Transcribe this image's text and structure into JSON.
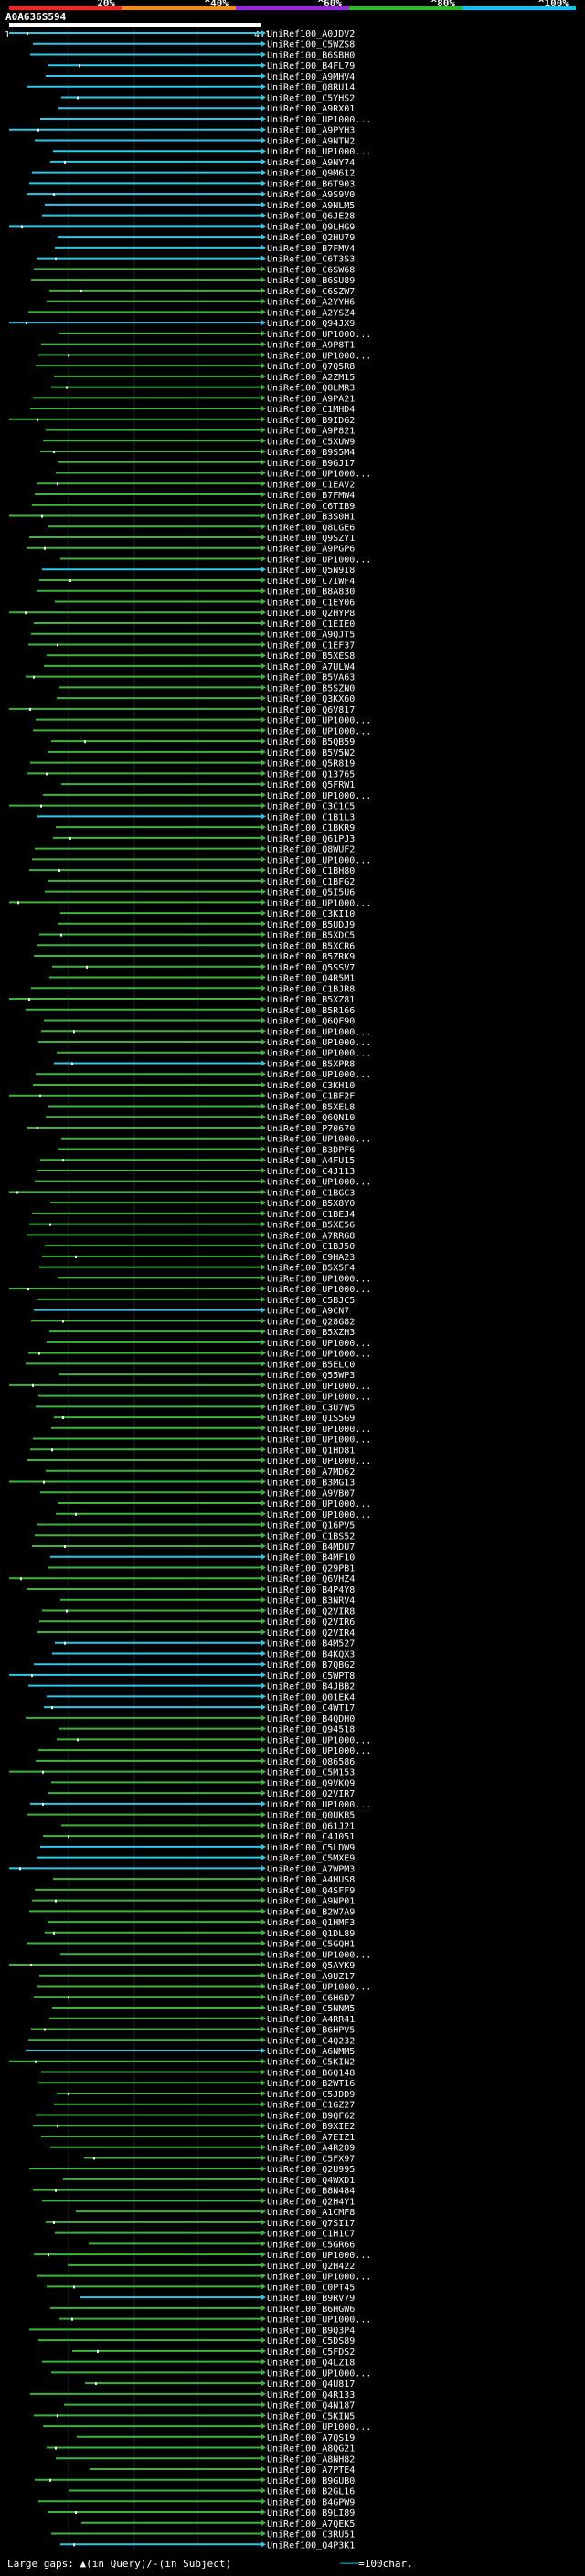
{
  "header": {
    "query_id": "A0A636S594",
    "ruler_start": "1",
    "ruler_end": "411",
    "pct_labels": [
      "20%",
      "^40%",
      "^60%",
      "^80%",
      "^100%"
    ],
    "pct_colors": [
      "#ff2020",
      "#ff8c00",
      "#a020f0",
      "#20c020",
      "#00c8ff"
    ]
  },
  "chart_data": {
    "type": "table",
    "title": "A0A636S594",
    "query_length": 411,
    "labels": [
      "UniRef100_A0JDV2",
      "UniRef100_C5WZS8",
      "UniRef100_B6SBH0",
      "UniRef100_B4FL79",
      "UniRef100_A9MHV4",
      "UniRef100_Q8RU14",
      "UniRef100_C5YHS2",
      "UniRef100_A9RX01",
      "UniRef100_UP1000...",
      "UniRef100_A9PYH3",
      "UniRef100_A9NTN2",
      "UniRef100_UP1000...",
      "UniRef100_A9NY74",
      "UniRef100_Q9M612",
      "UniRef100_B6T903",
      "UniRef100_A9S9V0",
      "UniRef100_A9NLM5",
      "UniRef100_Q6JE28",
      "UniRef100_Q9LHG9",
      "UniRef100_Q2HU79",
      "UniRef100_B7FMV4",
      "UniRef100_C6T3S3",
      "UniRef100_C6SW68",
      "UniRef100_B6SU89",
      "UniRef100_C6SZW7",
      "UniRef100_A2YYH6",
      "UniRef100_A2YSZ4",
      "UniRef100_Q94JX9",
      "UniRef100_UP1000...",
      "UniRef100_A9P8T1",
      "UniRef100_UP1000...",
      "UniRef100_Q7Q5R8",
      "UniRef100_A2ZM15",
      "UniRef100_Q8LMR3",
      "UniRef100_A9PA21",
      "UniRef100_C1MHD4",
      "UniRef100_B9IDG2",
      "UniRef100_A9P821",
      "UniRef100_C5XUW9",
      "UniRef100_B9S5M4",
      "UniRef100_B9GJ17",
      "UniRef100_UP1000...",
      "UniRef100_C1EAV2",
      "UniRef100_B7FMW4",
      "UniRef100_C6TIB9",
      "UniRef100_B3S0H1",
      "UniRef100_Q8LGE6",
      "UniRef100_Q9SZY1",
      "UniRef100_A9PGP6",
      "UniRef100_UP1000...",
      "UniRef100_Q5N9I8",
      "UniRef100_C7IWF4",
      "UniRef100_B8A830",
      "UniRef100_C1EY06",
      "UniRef100_Q2HYP8",
      "UniRef100_C1EIE0",
      "UniRef100_A9QJT5",
      "UniRef100_C1EF37",
      "UniRef100_B5XES8",
      "UniRef100_A7ULW4",
      "UniRef100_B5VA63",
      "UniRef100_B5SZN0",
      "UniRef100_Q3KX60",
      "UniRef100_Q6V817",
      "UniRef100_UP1000...",
      "UniRef100_UP1000...",
      "UniRef100_B5QB59",
      "UniRef100_B5V5N2",
      "UniRef100_Q5R819",
      "UniRef100_Q13765",
      "UniRef100_Q5FRW1",
      "UniRef100_UP1000...",
      "UniRef100_C3C1C5",
      "UniRef100_C1B1L3",
      "UniRef100_C1BKR9",
      "UniRef100_Q61PJ3",
      "UniRef100_Q8WUF2",
      "UniRef100_UP1000...",
      "UniRef100_C1BH80",
      "UniRef100_C1BFG2",
      "UniRef100_Q5I5U6",
      "UniRef100_UP1000...",
      "UniRef100_C3KI10",
      "UniRef100_B5UDJ9",
      "UniRef100_B5XDC5",
      "UniRef100_B5XCR6",
      "UniRef100_B5ZRK9",
      "UniRef100_Q5SSV7",
      "UniRef100_Q4R5M1",
      "UniRef100_C1BJR8",
      "UniRef100_B5XZ81",
      "UniRef100_B5R166",
      "UniRef100_Q6QF90",
      "UniRef100_UP1000...",
      "UniRef100_UP1000...",
      "UniRef100_UP1000...",
      "UniRef100_B5XPR8",
      "UniRef100_UP1000...",
      "UniRef100_C3KH10",
      "UniRef100_C1BF2F",
      "UniRef100_B5XEL8",
      "UniRef100_Q6QN10",
      "UniRef100_P70670",
      "UniRef100_UP1000...",
      "UniRef100_B3DPF6",
      "UniRef100_A4FU15",
      "UniRef100_C4J113",
      "UniRef100_UP1000...",
      "UniRef100_C1BGC3",
      "UniRef100_B5X8Y0",
      "UniRef100_C1BEJ4",
      "UniRef100_B5XE56",
      "UniRef100_A7RRG8",
      "UniRef100_C1BJ50",
      "UniRef100_C9HA23",
      "UniRef100_B5X5F4",
      "UniRef100_UP1000...",
      "UniRef100_UP1000...",
      "UniRef100_C5BJC5",
      "UniRef100_A9CN7",
      "UniRef100_Q28G82",
      "UniRef100_B5XZH3",
      "UniRef100_UP1000...",
      "UniRef100_UP1000...",
      "UniRef100_B5ELC0",
      "UniRef100_Q55WP3",
      "UniRef100_UP1000...",
      "UniRef100_UP1000...",
      "UniRef100_C3U7W5",
      "UniRef100_Q1S5G9",
      "UniRef100_UP1000...",
      "UniRef100_UP1000...",
      "UniRef100_Q1HD81",
      "UniRef100_UP1000...",
      "UniRef100_A7MD62",
      "UniRef100_B3MG13",
      "UniRef100_A9VB07",
      "UniRef100_UP1000...",
      "UniRef100_UP1000...",
      "UniRef100_Q16PV5",
      "UniRef100_C1BS52",
      "UniRef100_B4MDU7",
      "UniRef100_B4MF10",
      "UniRef100_Q29PB1",
      "UniRef100_Q6VHZ4",
      "UniRef100_B4P4Y8",
      "UniRef100_B3NRV4",
      "UniRef100_Q2VIR8",
      "UniRef100_Q2VIR6",
      "UniRef100_Q2VIR4",
      "UniRef100_B4M527",
      "UniRef100_B4KQX3",
      "UniRef100_B7QBG2",
      "UniRef100_C5WPT8",
      "UniRef100_B4JBB2",
      "UniRef100_Q01EK4",
      "UniRef100_C4WT17",
      "UniRef100_B4QDH0",
      "UniRef100_Q94518",
      "UniRef100_UP1000...",
      "UniRef100_UP1000...",
      "UniRef100_Q86586",
      "UniRef100_C5M153",
      "UniRef100_Q9VKQ9",
      "UniRef100_Q2VIR7",
      "UniRef100_UP1000...",
      "UniRef100_Q0UKB5",
      "UniRef100_Q61J21",
      "UniRef100_C4J051",
      "UniRef100_C5LDW9",
      "UniRef100_C5MXE9",
      "UniRef100_A7WPM3",
      "UniRef100_A4HUS8",
      "UniRef100_Q4SFF9",
      "UniRef100_A9NP01",
      "UniRef100_B2W7A9",
      "UniRef100_Q1HMF3",
      "UniRef100_Q1DL89",
      "UniRef100_C5GQH1",
      "UniRef100_UP1000...",
      "UniRef100_Q5AYK9",
      "UniRef100_A9UZ17",
      "UniRef100_UP1000...",
      "UniRef100_C6H6D7",
      "UniRef100_C5NNM5",
      "UniRef100_A4RR41",
      "UniRef100_B6HPV5",
      "UniRef100_C4Q232",
      "UniRef100_A6NMM5",
      "UniRef100_C5KIN2",
      "UniRef100_B6Q148",
      "UniRef100_B2WT16",
      "UniRef100_C5JDD9",
      "UniRef100_C1GZ27",
      "UniRef100_B9QF62",
      "UniRef100_B9XIE2",
      "UniRef100_A7EIZ1",
      "UniRef100_A4R289",
      "UniRef100_C5FX97",
      "UniRef100_Q2U995",
      "UniRef100_Q4WXD1",
      "UniRef100_B8N484",
      "UniRef100_Q2H4Y1",
      "UniRef100_A1CMF8",
      "UniRef100_Q7SI17",
      "UniRef100_C1H1C7",
      "UniRef100_C5GR66",
      "UniRef100_UP1000...",
      "UniRef100_Q2H422",
      "UniRef100_UP1000...",
      "UniRef100_C0PT45",
      "UniRef100_B9RV79",
      "UniRef100_B6HGW6",
      "UniRef100_UP1000...",
      "UniRef100_B9Q3P4",
      "UniRef100_C5DS89",
      "UniRef100_C5FDS2",
      "UniRef100_Q4LZ18",
      "UniRef100_UP1000...",
      "UniRef100_Q4U817",
      "UniRef100_Q4R133",
      "UniRef100_Q4N187",
      "UniRef100_C5KIN5",
      "UniRef100_UP1000...",
      "UniRef100_A7QS19",
      "UniRef100_A8QG21",
      "UniRef100_A8NH82",
      "UniRef100_A7PTE4",
      "UniRef100_B9GUB0",
      "UniRef100_B2GL16",
      "UniRef100_B4GPW9",
      "UniRef100_B9LI89",
      "UniRef100_A7QEK5",
      "UniRef100_C3RU51",
      "UniRef100_Q4P3K1"
    ]
  },
  "footer": {
    "large_gaps_label": "Large gaps:",
    "in_query_label": "(in Query)/",
    "in_subject_label": "(in Subject)",
    "scale_label": "=100char."
  }
}
